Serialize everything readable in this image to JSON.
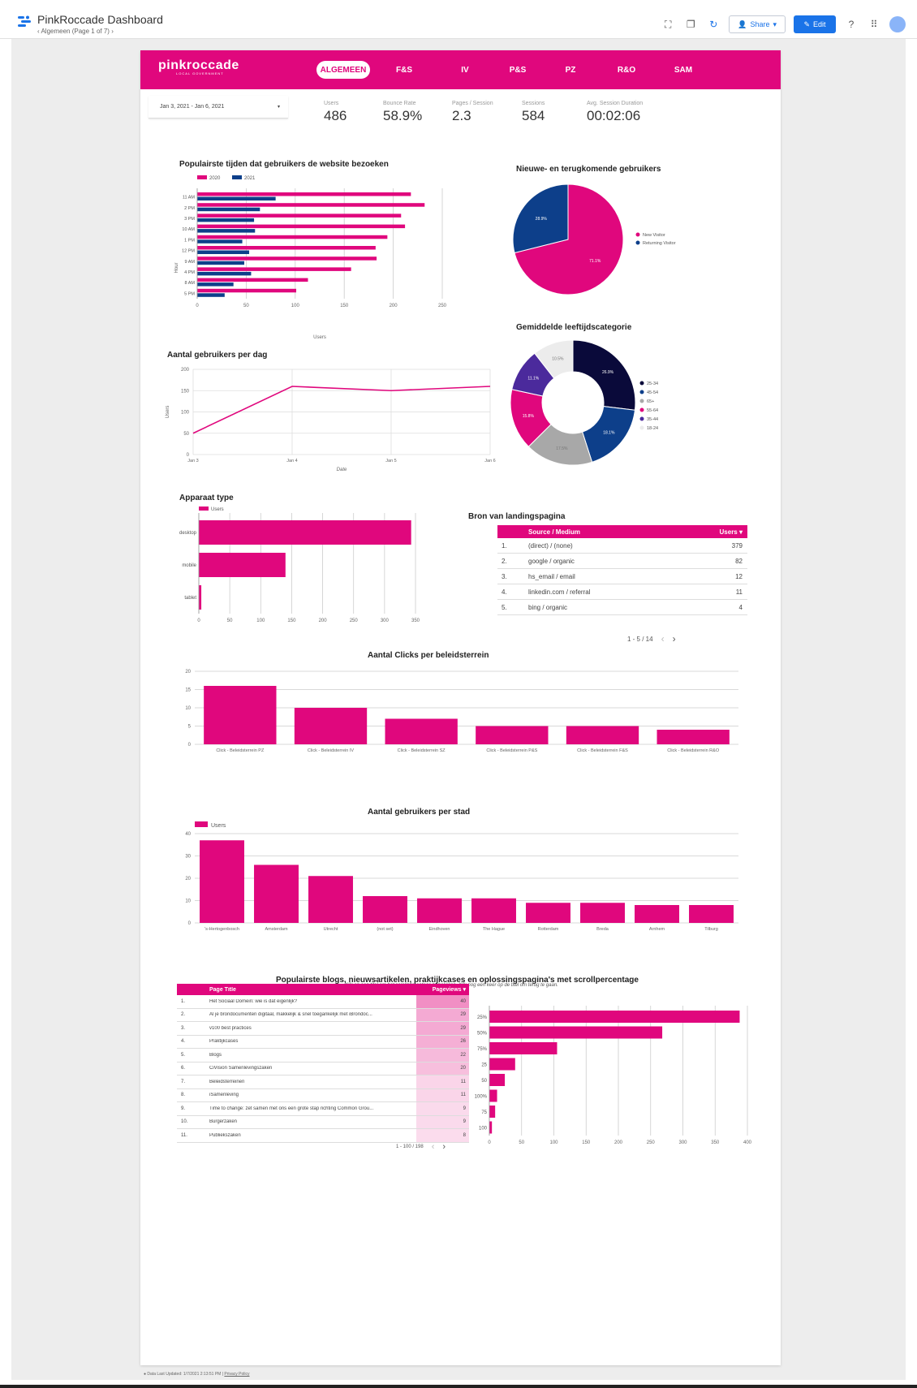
{
  "app": {
    "title": "PinkRoccade Dashboard",
    "page_indicator": "Algemeen (Page 1 of 7)",
    "share_label": "Share",
    "edit_label": "Edit"
  },
  "brand": {
    "name": "pinkroccade",
    "sub": "LOCAL GOVERNMENT"
  },
  "nav": {
    "tabs": [
      {
        "label": "ALGEMEEN",
        "active": true
      },
      {
        "label": "F&S"
      },
      {
        "label": "IV"
      },
      {
        "label": "P&S"
      },
      {
        "label": "PZ"
      },
      {
        "label": "R&O"
      },
      {
        "label": "SAM"
      }
    ]
  },
  "date_range": "Jan 3, 2021 - Jan 6, 2021",
  "metrics": [
    {
      "label": "Users",
      "value": "486"
    },
    {
      "label": "Bounce Rate",
      "value": "58.9%"
    },
    {
      "label": "Pages / Session",
      "value": "2.3"
    },
    {
      "label": "Sessions",
      "value": "584"
    },
    {
      "label": "Avg. Session Duration",
      "value": "00:02:06"
    }
  ],
  "colors": {
    "pink": "#e0077d",
    "navy": "#0d3f8a"
  },
  "titles": {
    "hours": "Populairste tijden dat gebruikers de website bezoeken",
    "visitors": "Nieuwe- en terugkomende gebruikers",
    "age": "Gemiddelde leeftijdscategorie",
    "daily": "Aantal gebruikers per dag",
    "device": "Apparaat type",
    "source": "Bron van landingspagina",
    "clicks": "Aantal Clicks per beleidsterrein",
    "city": "Aantal gebruikers per stad",
    "blogs": "Populairste blogs, nieuwsartikelen, praktijkcases en oplossingspagina's met scrollpercentage",
    "blogs_sub": "Klik op een titel om het scrollpercentage te bekijken. Klik nog een keer op de titel om terug te gaan."
  },
  "source_table": {
    "headers": {
      "source": "Source / Medium",
      "users": "Users ▾"
    },
    "rows": [
      {
        "num": "1.",
        "source": "(direct) / (none)",
        "users": "379"
      },
      {
        "num": "2.",
        "source": "google / organic",
        "users": "82"
      },
      {
        "num": "3.",
        "source": "hs_email / email",
        "users": "12"
      },
      {
        "num": "4.",
        "source": "linkedin.com / referral",
        "users": "11"
      },
      {
        "num": "5.",
        "source": "bing / organic",
        "users": "4"
      }
    ],
    "pager": "1 - 5 / 14"
  },
  "blog_table": {
    "headers": {
      "title": "Page Title",
      "pageviews": "Pageviews ▾"
    },
    "rows": [
      {
        "num": "1.",
        "title": "Het Sociaal Domein: wie is dat eigenlijk?",
        "pv": "40"
      },
      {
        "num": "2.",
        "title": "Al je brondocumenten digitaal, makkelijk & snel toegankelijk met iBrondoc...",
        "pv": "29"
      },
      {
        "num": "3.",
        "title": "v100 best practices",
        "pv": "29"
      },
      {
        "num": "4.",
        "title": "Praktijkcases",
        "pv": "26"
      },
      {
        "num": "5.",
        "title": "Blogs",
        "pv": "22"
      },
      {
        "num": "6.",
        "title": "CiVision Samenlevingszaken",
        "pv": "20"
      },
      {
        "num": "7.",
        "title": "Beleidsterreinen",
        "pv": "11"
      },
      {
        "num": "8.",
        "title": "iSamenleving",
        "pv": "11"
      },
      {
        "num": "9.",
        "title": "Time to change: zet samen met ons een grote stap richting Common Grou...",
        "pv": "9"
      },
      {
        "num": "10.",
        "title": "Burgerzaken",
        "pv": "9"
      },
      {
        "num": "11.",
        "title": "Publiekszaken",
        "pv": "8"
      }
    ],
    "pager": "1 - 100 / 198"
  },
  "footer": {
    "updated": "Data Last Updated: 1/7/2021 2:13:51 PM",
    "privacy": "Privacy Policy"
  },
  "chart_data": [
    {
      "id": "hours",
      "type": "bar",
      "orientation": "horizontal",
      "ylabel": "Hour",
      "xlabel": "Users",
      "categories": [
        "11 AM",
        "2 PM",
        "3 PM",
        "10 AM",
        "1 PM",
        "12 PM",
        "9 AM",
        "4 PM",
        "8 AM",
        "5 PM"
      ],
      "series": [
        {
          "name": "2020",
          "values": [
            218,
            232,
            208,
            212,
            194,
            182,
            183,
            157,
            113,
            101
          ]
        },
        {
          "name": "2021",
          "values": [
            80,
            64,
            58,
            59,
            46,
            53,
            48,
            55,
            37,
            28
          ]
        }
      ],
      "xlim": [
        0,
        250
      ],
      "xticks": [
        0,
        50,
        100,
        150,
        200,
        250
      ]
    },
    {
      "id": "visitors",
      "type": "pie",
      "labels": [
        "New Visitor",
        "Returning Visitor"
      ],
      "values": [
        71.1,
        28.9
      ],
      "value_labels": [
        "71.1%",
        "28.9%"
      ],
      "legend": "right"
    },
    {
      "id": "age",
      "type": "pie",
      "donut": true,
      "labels": [
        "25-34",
        "45-54",
        "65+",
        "55-64",
        "35-44",
        "18-24"
      ],
      "values": [
        26.9,
        18.1,
        17.5,
        15.8,
        11.1,
        10.5
      ],
      "value_labels": [
        "26.9%",
        "18.1%",
        "17.5%",
        "15.8%",
        "11.1%",
        "10.5%"
      ],
      "legend": "right"
    },
    {
      "id": "daily",
      "type": "line",
      "xlabel": "Date",
      "ylabel": "Users",
      "x": [
        "Jan 3",
        "Jan 4",
        "Jan 5",
        "Jan 6"
      ],
      "values": [
        50,
        160,
        150,
        160
      ],
      "ylim": [
        0,
        200
      ],
      "yticks": [
        0,
        50,
        100,
        150,
        200
      ]
    },
    {
      "id": "device",
      "type": "bar",
      "orientation": "horizontal",
      "categories": [
        "desktop",
        "mobile",
        "tablet"
      ],
      "series": [
        {
          "name": "Users",
          "values": [
            343,
            140,
            4
          ]
        }
      ],
      "xlim": [
        0,
        350
      ],
      "xticks": [
        0,
        50,
        100,
        150,
        200,
        250,
        300,
        350
      ]
    },
    {
      "id": "clicks",
      "type": "bar",
      "categories": [
        "Click - Beleidsterrein PZ",
        "Click - Beleidsterrein IV",
        "Click - Beleidsterrein SZ",
        "Click - Beleidsterrein P&S",
        "Click - Beleidsterrein F&S",
        "Click - Beleidsterrein R&O"
      ],
      "values": [
        16,
        10,
        7,
        5,
        5,
        4
      ],
      "ylim": [
        0,
        20
      ],
      "yticks": [
        0,
        5,
        10,
        15,
        20
      ]
    },
    {
      "id": "city",
      "type": "bar",
      "categories": [
        "'s-Hertogenbosch",
        "Amsterdam",
        "Utrecht",
        "(not set)",
        "Eindhoven",
        "The Hague",
        "Rotterdam",
        "Breda",
        "Arnhem",
        "Tilburg"
      ],
      "series": [
        {
          "name": "Users",
          "values": [
            37,
            26,
            21,
            12,
            11,
            11,
            9,
            9,
            8,
            8
          ]
        }
      ],
      "ylim": [
        0,
        40
      ],
      "yticks": [
        0,
        10,
        20,
        30,
        40
      ]
    },
    {
      "id": "scroll",
      "type": "bar",
      "orientation": "horizontal",
      "categories": [
        "25%",
        "50%",
        "75%",
        "25",
        "50",
        "100%",
        "75",
        "100"
      ],
      "values": [
        388,
        268,
        105,
        40,
        24,
        12,
        9,
        4
      ],
      "xlim": [
        0,
        400
      ],
      "xticks": [
        0,
        50,
        100,
        150,
        200,
        250,
        300,
        350,
        400
      ]
    }
  ]
}
